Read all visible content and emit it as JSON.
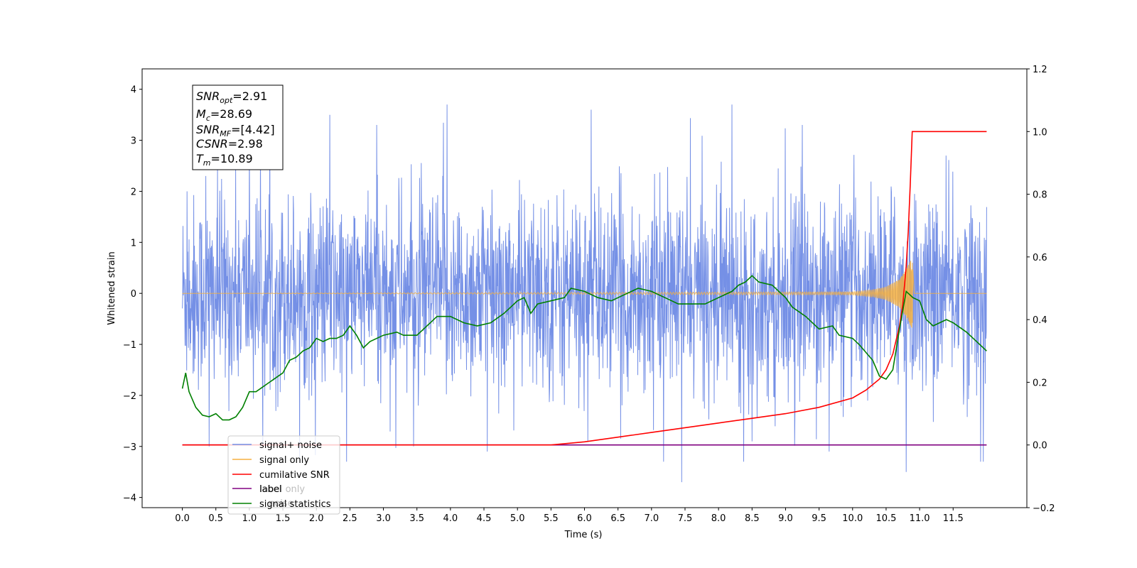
{
  "chart_data": {
    "type": "line",
    "xlabel": "Time (s)",
    "ylabel": "Whitened strain",
    "xlim": [
      -0.6,
      12.6
    ],
    "ylim": [
      -4.2,
      4.4
    ],
    "y2lim": [
      -0.2,
      1.2
    ],
    "x_ticks": [
      "0.0",
      "0.5",
      "1.0",
      "1.5",
      "2.0",
      "2.5",
      "3.0",
      "3.5",
      "4.0",
      "4.5",
      "5.0",
      "5.5",
      "6.0",
      "6.5",
      "7.0",
      "7.5",
      "8.0",
      "8.5",
      "9.0",
      "9.5",
      "10.0",
      "10.5",
      "11.0",
      "11.5"
    ],
    "y_ticks": [
      4,
      3,
      2,
      1,
      0,
      -1,
      -2,
      -3,
      -4
    ],
    "y_tick_labels": [
      "4",
      "3",
      "2",
      "1",
      "0",
      "−1",
      "−2",
      "−3",
      "−4"
    ],
    "y2_ticks": [
      1.2,
      1.0,
      0.8,
      0.6,
      0.4,
      0.2,
      0.0,
      -0.2
    ],
    "y2_tick_labels": [
      "1.2",
      "1.0",
      "0.8",
      "0.6",
      "0.4",
      "0.2",
      "0.0",
      "−0.2"
    ],
    "annotation": {
      "snr_opt": "SNRopt=2.91",
      "mc": "Mc=28.69",
      "snr_mf": "SNRMF=[4.42]",
      "csnr": "CSNR=2.98",
      "tm": "Tm=10.89"
    },
    "series": [
      {
        "name": "signal+ noise",
        "color": "#7590e6",
        "axis": "left",
        "x_range": [
          0.0,
          12.0
        ],
        "dense_noise": true,
        "envelope_note": "band roughly from -2.3 to 2.6 with spikes up to 4.1 and down to -3.7",
        "peaks_x": [
          0.07,
          0.35,
          1.0,
          2.2,
          2.9,
          3.95,
          6.1,
          8.2,
          9.25,
          9.65
        ],
        "peaks_y": [
          2.0,
          2.3,
          2.9,
          3.5,
          3.3,
          3.7,
          3.6,
          3.7,
          3.3,
          4.1
        ],
        "troughs_x": [
          0.4,
          1.2,
          2.45,
          3.45,
          4.55,
          6.05,
          7.45,
          8.5,
          9.65,
          10.8,
          11.95
        ],
        "troughs_y": [
          -3.0,
          -3.0,
          -3.3,
          -3.0,
          -3.1,
          -2.9,
          -3.7,
          -2.9,
          -3.1,
          -3.5,
          -3.3
        ]
      },
      {
        "name": "signal only",
        "color": "#f5b041",
        "axis": "left",
        "x": [
          0.0,
          10.0,
          10.3,
          10.5,
          10.7,
          10.85,
          10.89,
          10.92,
          12.0
        ],
        "amplitude": [
          0.0,
          0.03,
          0.07,
          0.13,
          0.28,
          0.6,
          0.7,
          0.0,
          0.0
        ]
      },
      {
        "name": "cumilative SNR",
        "color": "#ff0000",
        "axis": "right",
        "x": [
          0.0,
          5.5,
          6.0,
          6.5,
          7.0,
          7.5,
          8.0,
          8.5,
          9.0,
          9.5,
          10.0,
          10.2,
          10.4,
          10.5,
          10.6,
          10.7,
          10.75,
          10.8,
          10.83,
          10.86,
          10.89,
          12.0
        ],
        "y": [
          0.0,
          0.0,
          0.01,
          0.025,
          0.04,
          0.055,
          0.07,
          0.085,
          0.1,
          0.12,
          0.15,
          0.175,
          0.21,
          0.24,
          0.29,
          0.38,
          0.45,
          0.57,
          0.68,
          0.83,
          1.0,
          1.0
        ]
      },
      {
        "name": "label",
        "color": "#800080",
        "axis": "right",
        "x": [
          0.0,
          12.0
        ],
        "y": [
          0.0,
          0.0
        ]
      },
      {
        "name": "signal statistics",
        "color": "#008000",
        "axis": "right",
        "x": [
          0.0,
          0.05,
          0.1,
          0.2,
          0.3,
          0.4,
          0.5,
          0.6,
          0.7,
          0.8,
          0.9,
          1.0,
          1.1,
          1.3,
          1.5,
          1.6,
          1.7,
          1.8,
          1.9,
          2.0,
          2.1,
          2.2,
          2.3,
          2.4,
          2.5,
          2.6,
          2.7,
          2.8,
          3.0,
          3.2,
          3.3,
          3.5,
          3.7,
          3.8,
          4.0,
          4.2,
          4.4,
          4.6,
          4.8,
          5.0,
          5.1,
          5.2,
          5.3,
          5.5,
          5.7,
          5.8,
          6.0,
          6.1,
          6.2,
          6.4,
          6.6,
          6.8,
          7.0,
          7.1,
          7.2,
          7.4,
          7.8,
          8.0,
          8.2,
          8.3,
          8.4,
          8.5,
          8.6,
          8.8,
          8.9,
          9.0,
          9.1,
          9.3,
          9.5,
          9.7,
          9.8,
          10.0,
          10.1,
          10.3,
          10.4,
          10.5,
          10.6,
          10.7,
          10.8,
          10.9,
          11.0,
          11.1,
          11.2,
          11.4,
          11.5,
          11.7,
          11.8,
          12.0
        ],
        "y": [
          0.18,
          0.23,
          0.17,
          0.12,
          0.095,
          0.09,
          0.1,
          0.08,
          0.08,
          0.09,
          0.12,
          0.17,
          0.17,
          0.2,
          0.23,
          0.27,
          0.28,
          0.3,
          0.31,
          0.34,
          0.33,
          0.34,
          0.34,
          0.35,
          0.38,
          0.35,
          0.31,
          0.33,
          0.35,
          0.36,
          0.35,
          0.35,
          0.39,
          0.41,
          0.41,
          0.39,
          0.38,
          0.39,
          0.42,
          0.46,
          0.47,
          0.42,
          0.45,
          0.46,
          0.47,
          0.5,
          0.49,
          0.48,
          0.47,
          0.46,
          0.48,
          0.5,
          0.49,
          0.48,
          0.47,
          0.45,
          0.45,
          0.47,
          0.49,
          0.51,
          0.52,
          0.54,
          0.52,
          0.51,
          0.49,
          0.47,
          0.44,
          0.41,
          0.37,
          0.38,
          0.35,
          0.34,
          0.32,
          0.27,
          0.22,
          0.21,
          0.24,
          0.37,
          0.49,
          0.47,
          0.46,
          0.4,
          0.38,
          0.4,
          0.39,
          0.36,
          0.34,
          0.3
        ]
      }
    ],
    "legend": {
      "location": "lower-left",
      "entries": [
        "signal+ noise",
        "signal only",
        "cumilative SNR",
        "label",
        "signal statistics"
      ],
      "overlay_text": [
        "label only",
        "noise"
      ]
    }
  }
}
